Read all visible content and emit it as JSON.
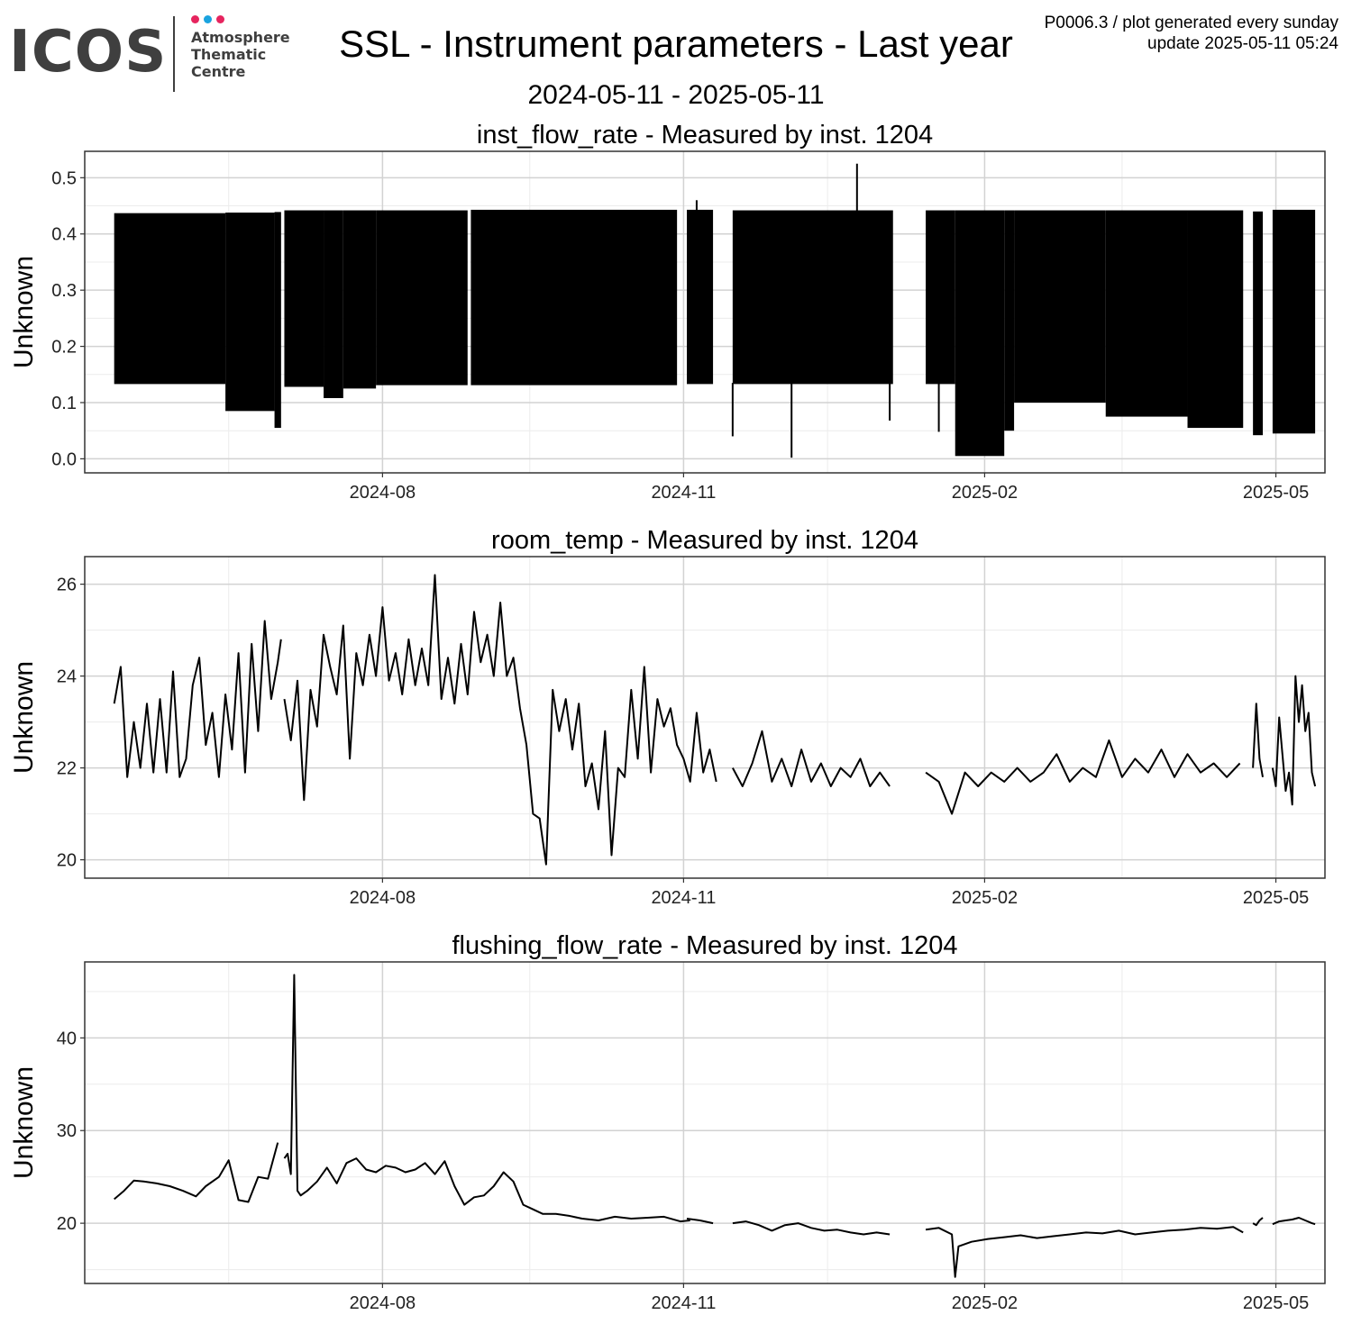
{
  "logo": {
    "wordmark": "ICOS",
    "lines": [
      "Atmosphere",
      "Thematic",
      "Centre"
    ],
    "dot_colors": [
      "#e6245e",
      "#1aa3df",
      "#e6245e"
    ]
  },
  "header": {
    "title": "SSL - Instrument parameters - Last year",
    "date_range": "2024-05-11 - 2025-05-11",
    "meta_line1": "P0006.3 / plot generated every sunday",
    "meta_line2": "update  2025-05-11 05:24"
  },
  "chart_data": [
    {
      "type": "line",
      "title": "inst_flow_rate - Measured by inst. 1204",
      "ylabel": "Unknown",
      "xlim": [
        "2024-05-11",
        "2025-05-11"
      ],
      "ylim": [
        -0.025,
        0.547
      ],
      "x_ticks": [
        "2024-08",
        "2024-11",
        "2025-02",
        "2025-05"
      ],
      "y_ticks": [
        0.0,
        0.1,
        0.2,
        0.3,
        0.4,
        0.5
      ],
      "grid": true,
      "band_segments": [
        {
          "start": "2024-05-11",
          "end": "2024-06-14",
          "hi": 0.437,
          "lo": 0.133
        },
        {
          "start": "2024-06-14",
          "end": "2024-06-29",
          "hi": 0.438,
          "lo": 0.085
        },
        {
          "start": "2024-06-29",
          "end": "2024-07-01",
          "hi": 0.439,
          "lo": 0.055
        },
        {
          "start": "2024-07-02",
          "end": "2024-07-14",
          "hi": 0.442,
          "lo": 0.128
        },
        {
          "start": "2024-07-14",
          "end": "2024-07-20",
          "hi": 0.442,
          "lo": 0.108
        },
        {
          "start": "2024-07-20",
          "end": "2024-07-30",
          "hi": 0.442,
          "lo": 0.125
        },
        {
          "start": "2024-07-30",
          "end": "2024-08-27",
          "hi": 0.442,
          "lo": 0.131
        },
        {
          "start": "2024-08-28",
          "end": "2024-10-30",
          "hi": 0.443,
          "lo": 0.131
        },
        {
          "start": "2024-11-02",
          "end": "2024-11-10",
          "hi": 0.443,
          "lo": 0.133
        },
        {
          "start": "2024-11-16",
          "end": "2025-01-04",
          "hi": 0.442,
          "lo": 0.133
        },
        {
          "start": "2025-01-14",
          "end": "2025-01-23",
          "hi": 0.442,
          "lo": 0.133
        },
        {
          "start": "2025-01-23",
          "end": "2025-02-07",
          "hi": 0.442,
          "lo": 0.005
        },
        {
          "start": "2025-02-07",
          "end": "2025-02-10",
          "hi": 0.442,
          "lo": 0.05
        },
        {
          "start": "2025-02-10",
          "end": "2025-03-10",
          "hi": 0.442,
          "lo": 0.1
        },
        {
          "start": "2025-03-10",
          "end": "2025-04-04",
          "hi": 0.442,
          "lo": 0.075
        },
        {
          "start": "2025-04-04",
          "end": "2025-04-21",
          "hi": 0.442,
          "lo": 0.055
        },
        {
          "start": "2025-04-24",
          "end": "2025-04-27",
          "hi": 0.44,
          "lo": 0.042
        },
        {
          "start": "2025-04-30",
          "end": "2025-05-13",
          "hi": 0.443,
          "lo": 0.045
        }
      ],
      "spikes": [
        {
          "x": "2024-11-05",
          "y": 0.46
        },
        {
          "x": "2024-12-24",
          "y": 0.525
        },
        {
          "x": "2024-11-16",
          "y": 0.04
        },
        {
          "x": "2024-12-04",
          "y": 0.002
        },
        {
          "x": "2025-01-03",
          "y": 0.068
        },
        {
          "x": "2025-01-18",
          "y": 0.048
        }
      ]
    },
    {
      "type": "line",
      "title": "room_temp - Measured by inst. 1204",
      "ylabel": "Unknown",
      "xlim": [
        "2024-05-11",
        "2025-05-11"
      ],
      "ylim": [
        19.6,
        26.6
      ],
      "x_ticks": [
        "2024-08",
        "2024-11",
        "2025-02",
        "2025-05"
      ],
      "y_ticks": [
        20,
        22,
        24,
        26
      ],
      "grid": true,
      "segments": [
        {
          "x": [
            "2024-05-11",
            "2024-05-13",
            "2024-05-15",
            "2024-05-17",
            "2024-05-19",
            "2024-05-21",
            "2024-05-23",
            "2024-05-25",
            "2024-05-27",
            "2024-05-29",
            "2024-05-31",
            "2024-06-02",
            "2024-06-04",
            "2024-06-06",
            "2024-06-08",
            "2024-06-10",
            "2024-06-12",
            "2024-06-14",
            "2024-06-16",
            "2024-06-18",
            "2024-06-20",
            "2024-06-22",
            "2024-06-24",
            "2024-06-26",
            "2024-06-28",
            "2024-06-30",
            "2024-07-01"
          ],
          "y": [
            23.4,
            24.2,
            21.8,
            23.0,
            22.0,
            23.4,
            21.9,
            23.5,
            21.9,
            24.1,
            21.8,
            22.2,
            23.8,
            24.4,
            22.5,
            23.2,
            21.8,
            23.6,
            22.4,
            24.5,
            21.9,
            24.7,
            22.8,
            25.2,
            23.5,
            24.3,
            24.8
          ]
        },
        {
          "x": [
            "2024-07-02",
            "2024-07-04",
            "2024-07-06",
            "2024-07-08",
            "2024-07-10",
            "2024-07-12",
            "2024-07-14",
            "2024-07-16",
            "2024-07-18",
            "2024-07-20",
            "2024-07-22",
            "2024-07-24",
            "2024-07-26",
            "2024-07-28",
            "2024-07-30",
            "2024-08-01",
            "2024-08-03",
            "2024-08-05",
            "2024-08-07",
            "2024-08-09",
            "2024-08-11",
            "2024-08-13",
            "2024-08-15",
            "2024-08-17",
            "2024-08-19",
            "2024-08-21",
            "2024-08-23",
            "2024-08-25",
            "2024-08-27",
            "2024-08-29",
            "2024-08-31",
            "2024-09-02",
            "2024-09-04",
            "2024-09-06",
            "2024-09-08",
            "2024-09-10",
            "2024-09-12",
            "2024-09-14",
            "2024-09-16",
            "2024-09-18",
            "2024-09-20",
            "2024-09-22",
            "2024-09-24",
            "2024-09-26",
            "2024-09-28",
            "2024-09-30",
            "2024-10-02",
            "2024-10-04",
            "2024-10-06",
            "2024-10-08",
            "2024-10-10",
            "2024-10-12",
            "2024-10-14",
            "2024-10-16",
            "2024-10-18",
            "2024-10-20",
            "2024-10-22",
            "2024-10-24",
            "2024-10-26",
            "2024-10-28",
            "2024-10-30",
            "2024-11-01",
            "2024-11-03",
            "2024-11-05",
            "2024-11-07",
            "2024-11-09",
            "2024-11-11"
          ],
          "y": [
            23.5,
            22.6,
            23.9,
            21.3,
            23.7,
            22.9,
            24.9,
            24.2,
            23.6,
            25.1,
            22.2,
            24.5,
            23.8,
            24.9,
            24.0,
            25.5,
            23.9,
            24.5,
            23.6,
            24.8,
            23.8,
            24.6,
            23.8,
            26.2,
            23.5,
            24.4,
            23.4,
            24.7,
            23.6,
            25.4,
            24.3,
            24.9,
            24.0,
            25.6,
            24.0,
            24.4,
            23.3,
            22.5,
            21.0,
            20.9,
            19.9,
            23.7,
            22.8,
            23.5,
            22.4,
            23.4,
            21.6,
            22.1,
            21.1,
            22.8,
            20.1,
            22.0,
            21.8,
            23.7,
            22.2,
            24.2,
            21.9,
            23.5,
            22.9,
            23.3,
            22.5,
            22.2,
            21.7,
            23.2,
            21.9,
            22.4,
            21.7
          ]
        },
        {
          "x": [
            "2024-11-16",
            "2024-11-19",
            "2024-11-22",
            "2024-11-25",
            "2024-11-28",
            "2024-12-01",
            "2024-12-04",
            "2024-12-07",
            "2024-12-10",
            "2024-12-13",
            "2024-12-16",
            "2024-12-19",
            "2024-12-22",
            "2024-12-25",
            "2024-12-28",
            "2024-12-31",
            "2025-01-03"
          ],
          "y": [
            22.0,
            21.6,
            22.1,
            22.8,
            21.7,
            22.2,
            21.6,
            22.4,
            21.7,
            22.1,
            21.6,
            22.0,
            21.8,
            22.2,
            21.6,
            21.9,
            21.6
          ]
        },
        {
          "x": [
            "2025-01-14",
            "2025-01-18",
            "2025-01-22",
            "2025-01-26",
            "2025-01-30",
            "2025-02-03",
            "2025-02-07",
            "2025-02-11",
            "2025-02-15",
            "2025-02-19",
            "2025-02-23",
            "2025-02-27",
            "2025-03-03",
            "2025-03-07",
            "2025-03-11",
            "2025-03-15",
            "2025-03-19",
            "2025-03-23",
            "2025-03-27",
            "2025-03-31",
            "2025-04-04",
            "2025-04-08",
            "2025-04-12",
            "2025-04-16",
            "2025-04-20"
          ],
          "y": [
            21.9,
            21.7,
            21.0,
            21.9,
            21.6,
            21.9,
            21.7,
            22.0,
            21.7,
            21.9,
            22.3,
            21.7,
            22.0,
            21.8,
            22.6,
            21.8,
            22.2,
            21.9,
            22.4,
            21.8,
            22.3,
            21.9,
            22.1,
            21.8,
            22.1
          ]
        },
        {
          "x": [
            "2025-04-24",
            "2025-04-25",
            "2025-04-26",
            "2025-04-27"
          ],
          "y": [
            22.0,
            23.4,
            22.2,
            21.8
          ]
        },
        {
          "x": [
            "2025-04-30",
            "2025-05-01",
            "2025-05-02",
            "2025-05-03",
            "2025-05-04",
            "2025-05-05",
            "2025-05-06",
            "2025-05-07",
            "2025-05-08",
            "2025-05-09",
            "2025-05-10",
            "2025-05-11",
            "2025-05-12",
            "2025-05-13"
          ],
          "y": [
            22.0,
            21.6,
            23.1,
            22.3,
            21.5,
            21.9,
            21.2,
            24.0,
            23.0,
            23.8,
            22.8,
            23.2,
            21.9,
            21.6
          ]
        }
      ]
    },
    {
      "type": "line",
      "title": "flushing_flow_rate - Measured by inst. 1204",
      "ylabel": "Unknown",
      "xlim": [
        "2024-05-11",
        "2025-05-11"
      ],
      "ylim": [
        13.5,
        48.2
      ],
      "x_ticks": [
        "2024-08",
        "2024-11",
        "2025-02",
        "2025-05"
      ],
      "y_ticks": [
        20,
        30,
        40
      ],
      "grid": true,
      "segments": [
        {
          "x": [
            "2024-05-11",
            "2024-05-14",
            "2024-05-17",
            "2024-05-20",
            "2024-05-24",
            "2024-05-28",
            "2024-06-01",
            "2024-06-05",
            "2024-06-08",
            "2024-06-12",
            "2024-06-15",
            "2024-06-18",
            "2024-06-21",
            "2024-06-24",
            "2024-06-27",
            "2024-06-30"
          ],
          "y": [
            22.6,
            23.5,
            24.6,
            24.5,
            24.3,
            24.0,
            23.5,
            22.9,
            24.0,
            25.0,
            26.8,
            22.5,
            22.3,
            25.0,
            24.8,
            28.7
          ]
        },
        {
          "x": [
            "2024-07-02",
            "2024-07-03",
            "2024-07-04",
            "2024-07-05",
            "2024-07-06",
            "2024-07-07",
            "2024-07-09",
            "2024-07-12",
            "2024-07-15",
            "2024-07-18",
            "2024-07-21",
            "2024-07-24",
            "2024-07-27",
            "2024-07-30",
            "2024-08-02",
            "2024-08-05",
            "2024-08-08",
            "2024-08-11",
            "2024-08-14",
            "2024-08-17",
            "2024-08-20",
            "2024-08-23",
            "2024-08-26",
            "2024-08-29",
            "2024-09-01",
            "2024-09-04",
            "2024-09-07",
            "2024-09-10",
            "2024-09-13",
            "2024-09-16",
            "2024-09-19",
            "2024-09-23",
            "2024-09-27",
            "2024-10-01",
            "2024-10-06",
            "2024-10-11",
            "2024-10-16",
            "2024-10-21",
            "2024-10-26",
            "2024-10-31",
            "2024-11-03"
          ],
          "y": [
            27.0,
            27.5,
            25.3,
            46.8,
            23.5,
            23.0,
            23.5,
            24.5,
            26.0,
            24.3,
            26.5,
            27.0,
            25.8,
            25.5,
            26.2,
            26.0,
            25.5,
            25.8,
            26.5,
            25.3,
            26.7,
            24.0,
            22.0,
            22.8,
            23.0,
            24.0,
            25.5,
            24.5,
            22.0,
            21.5,
            21.0,
            21.0,
            20.8,
            20.5,
            20.3,
            20.7,
            20.5,
            20.6,
            20.7,
            20.2,
            20.3
          ]
        },
        {
          "x": [
            "2024-11-02",
            "2024-11-06",
            "2024-11-10"
          ],
          "y": [
            20.5,
            20.3,
            20.0
          ]
        },
        {
          "x": [
            "2024-11-16",
            "2024-11-20",
            "2024-11-24",
            "2024-11-28",
            "2024-12-02",
            "2024-12-06",
            "2024-12-10",
            "2024-12-14",
            "2024-12-18",
            "2024-12-22",
            "2024-12-26",
            "2024-12-30",
            "2025-01-03"
          ],
          "y": [
            20.0,
            20.2,
            19.8,
            19.2,
            19.8,
            20.0,
            19.5,
            19.2,
            19.3,
            19.0,
            18.8,
            19.0,
            18.8
          ]
        },
        {
          "x": [
            "2025-01-14",
            "2025-01-18",
            "2025-01-22",
            "2025-01-23",
            "2025-01-24",
            "2025-01-28",
            "2025-02-02",
            "2025-02-07",
            "2025-02-12",
            "2025-02-17",
            "2025-02-22",
            "2025-02-27",
            "2025-03-04",
            "2025-03-09",
            "2025-03-14",
            "2025-03-19",
            "2025-03-24",
            "2025-03-29",
            "2025-04-03",
            "2025-04-08",
            "2025-04-13",
            "2025-04-18",
            "2025-04-21"
          ],
          "y": [
            19.3,
            19.5,
            18.8,
            14.2,
            17.5,
            18.0,
            18.3,
            18.5,
            18.7,
            18.4,
            18.6,
            18.8,
            19.0,
            18.9,
            19.2,
            18.8,
            19.0,
            19.2,
            19.3,
            19.5,
            19.4,
            19.6,
            19.0
          ]
        },
        {
          "x": [
            "2025-04-24",
            "2025-04-25",
            "2025-04-26",
            "2025-04-27"
          ],
          "y": [
            20.0,
            19.8,
            20.3,
            20.6
          ]
        },
        {
          "x": [
            "2025-04-30",
            "2025-05-02",
            "2025-05-04",
            "2025-05-06",
            "2025-05-08",
            "2025-05-10",
            "2025-05-12",
            "2025-05-13"
          ],
          "y": [
            19.9,
            20.2,
            20.3,
            20.4,
            20.6,
            20.3,
            20.0,
            19.9
          ]
        }
      ]
    }
  ]
}
